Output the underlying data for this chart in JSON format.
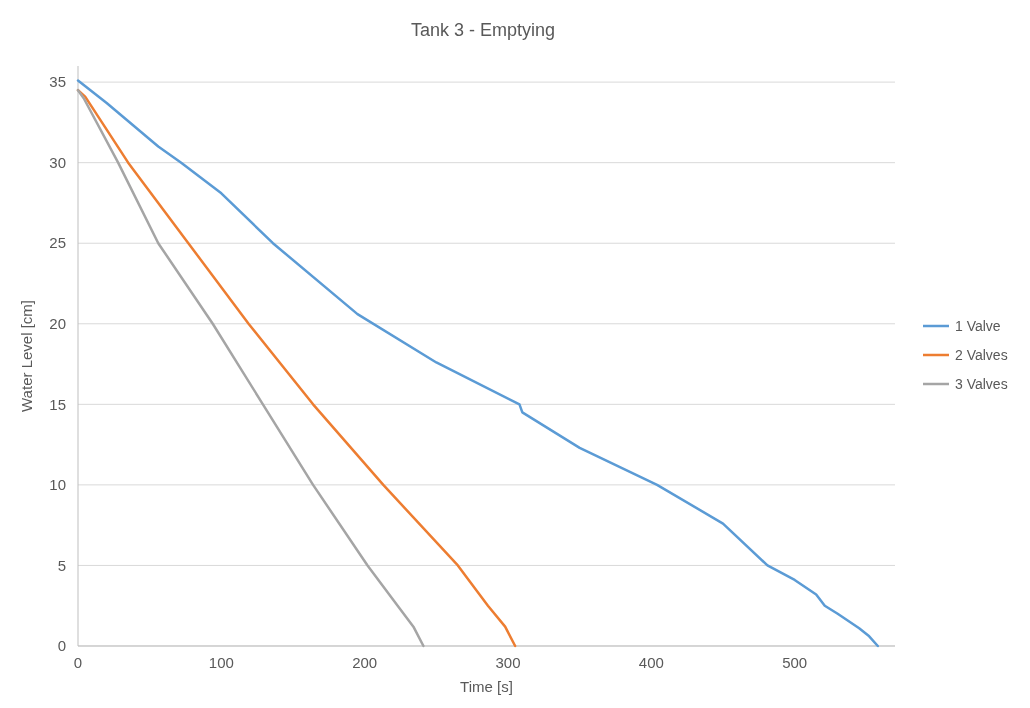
{
  "chart_data": {
    "type": "line",
    "title": "Tank 3 - Emptying",
    "xlabel": "Time [s]",
    "ylabel": "Water Level [cm]",
    "xlim": [
      0,
      570
    ],
    "xticks": [
      0,
      100,
      200,
      300,
      400,
      500
    ],
    "ylim": [
      0,
      36
    ],
    "yticks": [
      0,
      5,
      10,
      15,
      20,
      25,
      30,
      35
    ],
    "grid": "y",
    "legend": "right",
    "marker": "none",
    "line_style": "solid",
    "series": [
      {
        "name": "1 Valve",
        "color": "#5b9bd5",
        "x": [
          0,
          20,
          56,
          72,
          100,
          136,
          195,
          250,
          308,
          310,
          350,
          404,
          450,
          481,
          500,
          515,
          521,
          530,
          545,
          552,
          558
        ],
        "values": [
          35.1,
          33.7,
          31.0,
          30.0,
          28.1,
          25.0,
          20.6,
          17.6,
          15.0,
          14.5,
          12.3,
          10.0,
          7.6,
          5.0,
          4.1,
          3.2,
          2.5,
          2.0,
          1.1,
          0.6,
          0
        ]
      },
      {
        "name": "2 Valves",
        "color": "#ed7d31",
        "x": [
          0,
          5,
          35,
          77,
          119,
          164,
          213,
          265,
          286,
          298,
          305
        ],
        "values": [
          34.5,
          34.1,
          30.0,
          25.0,
          20.0,
          15.0,
          10.0,
          5.0,
          2.5,
          1.2,
          0
        ]
      },
      {
        "name": "3 Valves",
        "color": "#a5a5a5",
        "x": [
          0,
          4,
          28,
          56,
          94,
          129,
          164,
          202,
          223,
          234,
          241
        ],
        "values": [
          34.5,
          34.0,
          30.0,
          25.0,
          20.0,
          15.0,
          10.0,
          5.0,
          2.5,
          1.2,
          0
        ]
      }
    ]
  }
}
